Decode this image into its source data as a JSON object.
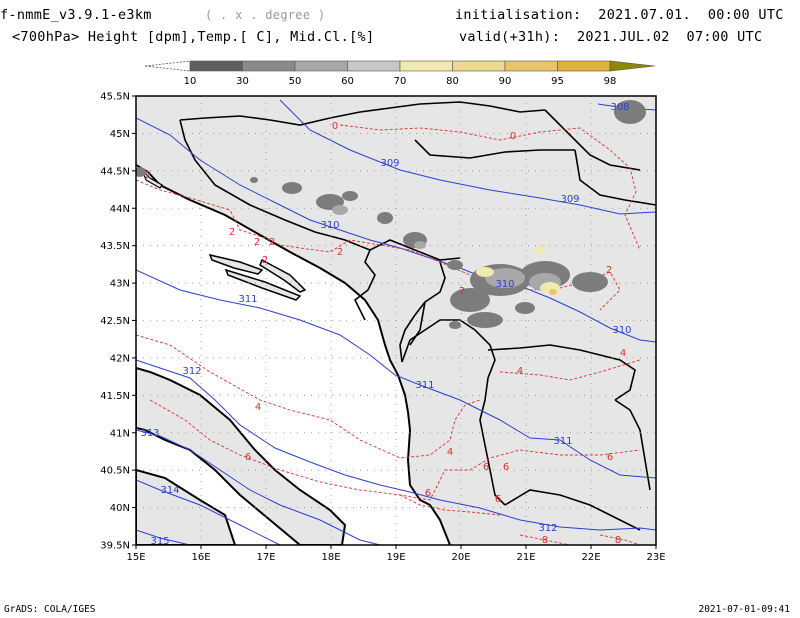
{
  "header": {
    "model": "f-nmmE_v3.9.1-e3km",
    "grid": "( . x . degree )",
    "field": "<700hPa> Height [dpm],Temp.[ C], Mid.Cl.[%]",
    "init": "initialisation:  2021.07.01.  00:00 UTC",
    "valid": "valid(+31h):  2021.JUL.02  07:00 UTC"
  },
  "colorbar": {
    "labels": [
      "10",
      "30",
      "50",
      "60",
      "70",
      "80",
      "90",
      "95",
      "98"
    ],
    "colors": [
      "#5f5f5f",
      "#8a8a8a",
      "#a8a8a8",
      "#c8c8c8",
      "#f0eab0",
      "#ecd98e",
      "#e8c56a",
      "#e0b040",
      "#9a8a10"
    ]
  },
  "map": {
    "lon_ticks": [
      "15E",
      "16E",
      "17E",
      "18E",
      "19E",
      "20E",
      "21E",
      "22E",
      "23E"
    ],
    "lat_ticks": [
      "45.5N",
      "45N",
      "44.5N",
      "44N",
      "43.5N",
      "43N",
      "42.5N",
      "42N",
      "41.5N",
      "41N",
      "40.5N",
      "40N",
      "39.5N"
    ],
    "height_labels": [
      "308",
      "309",
      "309",
      "310",
      "310",
      "310",
      "311",
      "311",
      "311",
      "312",
      "312",
      "313",
      "314",
      "315"
    ],
    "temp_labels": [
      "0",
      "0",
      "2",
      "2",
      "2",
      "2",
      "2",
      "2",
      "2",
      "2",
      "4",
      "4",
      "4",
      "4",
      "6",
      "6",
      "6",
      "6",
      "6",
      "6",
      "8",
      "8"
    ],
    "colors": {
      "land_bg": "#e6e6e6",
      "height": "#2b3fd6",
      "temp": "#e03030",
      "border": "#000000"
    }
  },
  "footer": {
    "left": "GrADS: COLA/IGES",
    "right": "2021-07-01-09:41"
  }
}
